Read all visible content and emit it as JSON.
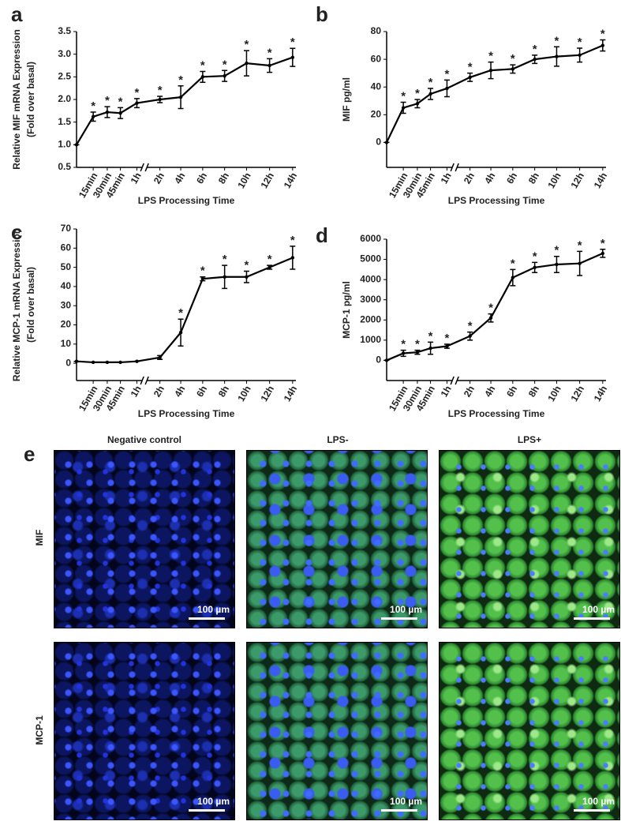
{
  "chart_data": [
    {
      "type": "line",
      "label": "a",
      "ylabel": [
        "Relative MIF mRNA Expression",
        "(Fold over basal)"
      ],
      "xlabel": "LPS Processing Time",
      "categories": [
        null,
        "15min",
        "30min",
        "45min",
        "1h",
        "2h",
        "4h",
        "6h",
        "8h",
        "10h",
        "12h",
        "14h"
      ],
      "values": [
        1.0,
        1.62,
        1.72,
        1.7,
        1.92,
        2.0,
        2.05,
        2.5,
        2.52,
        2.8,
        2.75,
        2.93
      ],
      "errors": [
        0,
        0.1,
        0.12,
        0.12,
        0.1,
        0.07,
        0.25,
        0.12,
        0.12,
        0.28,
        0.15,
        0.2
      ],
      "significance": [
        null,
        "*",
        "*",
        "*",
        "*",
        "*",
        "*",
        "*",
        "*",
        "*",
        "*",
        "*"
      ],
      "ylim": [
        0.5,
        3.5
      ],
      "yticks": [
        0.5,
        {
          "value": 1,
          "label": "1.0"
        },
        1.5,
        {
          "value": 2,
          "label": "2.0"
        },
        2.5,
        {
          "value": 3,
          "label": "3.0"
        },
        3.5
      ],
      "color": "#000000"
    },
    {
      "type": "line",
      "label": "b",
      "ylabel": [
        "MIF pg/ml"
      ],
      "xlabel": "LPS Processing Time",
      "categories": [
        null,
        "15min",
        "30min",
        "45min",
        "1h",
        "2h",
        "4h",
        "6h",
        "8h",
        "10h",
        "12h",
        "14h"
      ],
      "values": [
        0,
        25,
        28,
        35,
        39,
        47,
        52,
        53,
        60,
        62,
        63,
        70
      ],
      "errors": [
        0,
        4,
        3,
        4,
        6,
        3,
        6,
        3,
        3,
        7,
        5,
        4
      ],
      "significance": [
        null,
        "*",
        "*",
        "*",
        "*",
        "*",
        "*",
        "*",
        "*",
        "*",
        "*",
        "*"
      ],
      "ylim": [
        -18,
        80
      ],
      "yticks": [
        0,
        20,
        40,
        60,
        80
      ],
      "color": "#000000"
    },
    {
      "type": "line",
      "label": "c",
      "ylabel": [
        "Relative MCP-1 mRNA Expression",
        "(Fold over basal)"
      ],
      "xlabel": "LPS Processing Time",
      "categories": [
        null,
        "15min",
        "30min",
        "45min",
        "1h",
        "2h",
        "4h",
        "6h",
        "8h",
        "10h",
        "12h",
        "14h"
      ],
      "values": [
        1,
        0.5,
        0.5,
        0.5,
        1,
        3,
        16,
        44,
        45,
        45,
        50,
        55
      ],
      "errors": [
        0,
        0,
        0,
        0,
        0,
        1,
        7,
        1,
        6,
        3,
        1,
        6
      ],
      "significance": [
        null,
        null,
        null,
        null,
        null,
        null,
        "*",
        "*",
        "*",
        "*",
        "*",
        "*"
      ],
      "ylim": [
        -9,
        70
      ],
      "yticks": [
        0,
        10,
        20,
        30,
        40,
        50,
        60,
        70
      ],
      "color": "#000000"
    },
    {
      "type": "line",
      "label": "d",
      "ylabel": [
        "MCP-1 pg/ml"
      ],
      "xlabel": "LPS Processing Time",
      "categories": [
        null,
        "15min",
        "30min",
        "45min",
        "1h",
        "2h",
        "4h",
        "6h",
        "8h",
        "10h",
        "12h",
        "14h"
      ],
      "values": [
        0,
        350,
        400,
        600,
        700,
        1200,
        2100,
        4100,
        4600,
        4750,
        4800,
        5300
      ],
      "errors": [
        0,
        150,
        100,
        300,
        100,
        200,
        200,
        400,
        250,
        400,
        600,
        200
      ],
      "significance": [
        null,
        "*",
        "*",
        "*",
        "*",
        "*",
        "*",
        "*",
        "*",
        "*",
        "*",
        "*"
      ],
      "ylim": [
        -1000,
        6000
      ],
      "yticks": [
        0,
        1000,
        2000,
        3000,
        4000,
        5000,
        6000
      ],
      "color": "#000000"
    }
  ],
  "panel_e": {
    "label": "e",
    "columns": [
      "Negative control",
      "LPS-",
      "LPS+"
    ],
    "rows": [
      "MIF",
      "MCP-1"
    ],
    "scale_bar": "100 µm"
  }
}
